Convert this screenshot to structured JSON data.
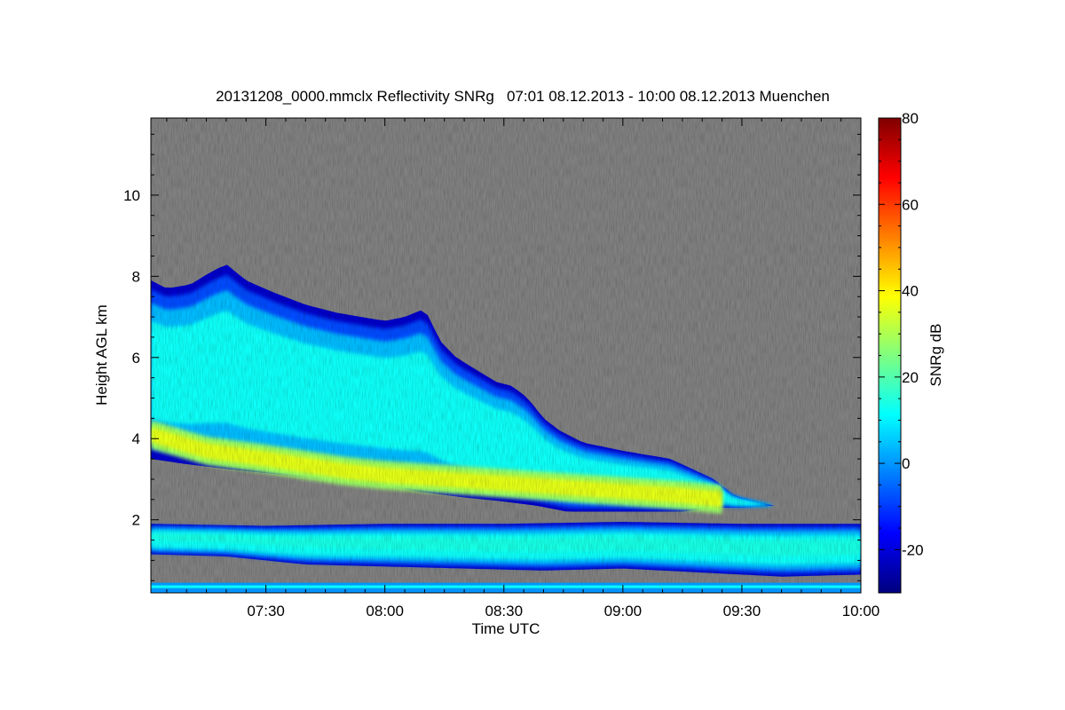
{
  "chart_data": {
    "type": "heatmap",
    "title": "20131208_0000.mmclx Reflectivity SNRg   07:01 08.12.2013 - 10:00 08.12.2013 Muenchen",
    "xlabel": "Time UTC",
    "ylabel": "Height AGL km",
    "x_range_minutes": [
      421,
      600
    ],
    "x_ticks": [
      {
        "minute": 450,
        "label": "07:30"
      },
      {
        "minute": 480,
        "label": "08:00"
      },
      {
        "minute": 510,
        "label": "08:30"
      },
      {
        "minute": 540,
        "label": "09:00"
      },
      {
        "minute": 570,
        "label": "09:30"
      },
      {
        "minute": 600,
        "label": "10:00"
      }
    ],
    "ylim": [
      0.2,
      11.9
    ],
    "y_ticks": [
      2,
      4,
      6,
      8,
      10
    ],
    "colorbar": {
      "label": "SNRg dB",
      "range": [
        -30,
        80
      ],
      "ticks": [
        -20,
        0,
        20,
        40,
        60,
        80
      ],
      "colors": [
        "#00007f",
        "#0000ff",
        "#007fff",
        "#00ffff",
        "#7fff7f",
        "#ffff00",
        "#ff7f00",
        "#ff0000",
        "#7f0000"
      ]
    },
    "background_color": "#808080",
    "cloud_layers": [
      {
        "name": "upper",
        "top": [
          [
            421,
            7.9
          ],
          [
            425,
            7.7
          ],
          [
            431,
            7.8
          ],
          [
            436,
            8.1
          ],
          [
            440,
            8.3
          ],
          [
            445,
            7.9
          ],
          [
            452,
            7.6
          ],
          [
            460,
            7.3
          ],
          [
            468,
            7.1
          ],
          [
            474,
            7.0
          ],
          [
            480,
            6.9
          ],
          [
            485,
            7.0
          ],
          [
            490,
            7.2
          ],
          [
            494,
            6.4
          ],
          [
            498,
            6.0
          ],
          [
            503,
            5.7
          ],
          [
            508,
            5.4
          ],
          [
            512,
            5.3
          ],
          [
            516,
            5.0
          ],
          [
            520,
            4.5
          ],
          [
            524,
            4.2
          ],
          [
            530,
            3.9
          ],
          [
            540,
            3.7
          ],
          [
            552,
            3.5
          ],
          [
            563,
            3.0
          ],
          [
            568,
            2.6
          ],
          [
            578,
            2.35
          ]
        ],
        "bottom": [
          [
            421,
            3.5
          ],
          [
            428,
            3.4
          ],
          [
            436,
            3.3
          ],
          [
            445,
            3.2
          ],
          [
            455,
            3.1
          ],
          [
            465,
            3.0
          ],
          [
            475,
            2.9
          ],
          [
            480,
            2.85
          ],
          [
            488,
            2.7
          ],
          [
            500,
            2.55
          ],
          [
            510,
            2.45
          ],
          [
            518,
            2.35
          ],
          [
            526,
            2.2
          ],
          [
            534,
            2.2
          ],
          [
            545,
            2.2
          ],
          [
            555,
            2.2
          ],
          [
            563,
            2.3
          ],
          [
            570,
            2.3
          ],
          [
            578,
            2.35
          ]
        ],
        "core": [
          [
            421,
            4.1
          ],
          [
            435,
            3.7
          ],
          [
            450,
            3.5
          ],
          [
            470,
            3.2
          ],
          [
            480,
            3.1
          ],
          [
            495,
            3.0
          ],
          [
            510,
            2.9
          ],
          [
            525,
            2.8
          ],
          [
            540,
            2.7
          ],
          [
            555,
            2.6
          ],
          [
            565,
            2.5
          ]
        ],
        "core_snr_db": 36
      },
      {
        "name": "lower",
        "top": [
          [
            421,
            1.9
          ],
          [
            450,
            1.85
          ],
          [
            480,
            1.9
          ],
          [
            510,
            1.9
          ],
          [
            540,
            1.95
          ],
          [
            570,
            1.9
          ],
          [
            600,
            1.9
          ]
        ],
        "bottom": [
          [
            421,
            1.15
          ],
          [
            440,
            1.1
          ],
          [
            460,
            0.9
          ],
          [
            480,
            0.85
          ],
          [
            500,
            0.8
          ],
          [
            520,
            0.75
          ],
          [
            540,
            0.8
          ],
          [
            560,
            0.7
          ],
          [
            580,
            0.6
          ],
          [
            600,
            0.65
          ]
        ],
        "core_snr_db": 14
      }
    ],
    "ground_band_km": [
      0.2,
      0.45
    ]
  }
}
